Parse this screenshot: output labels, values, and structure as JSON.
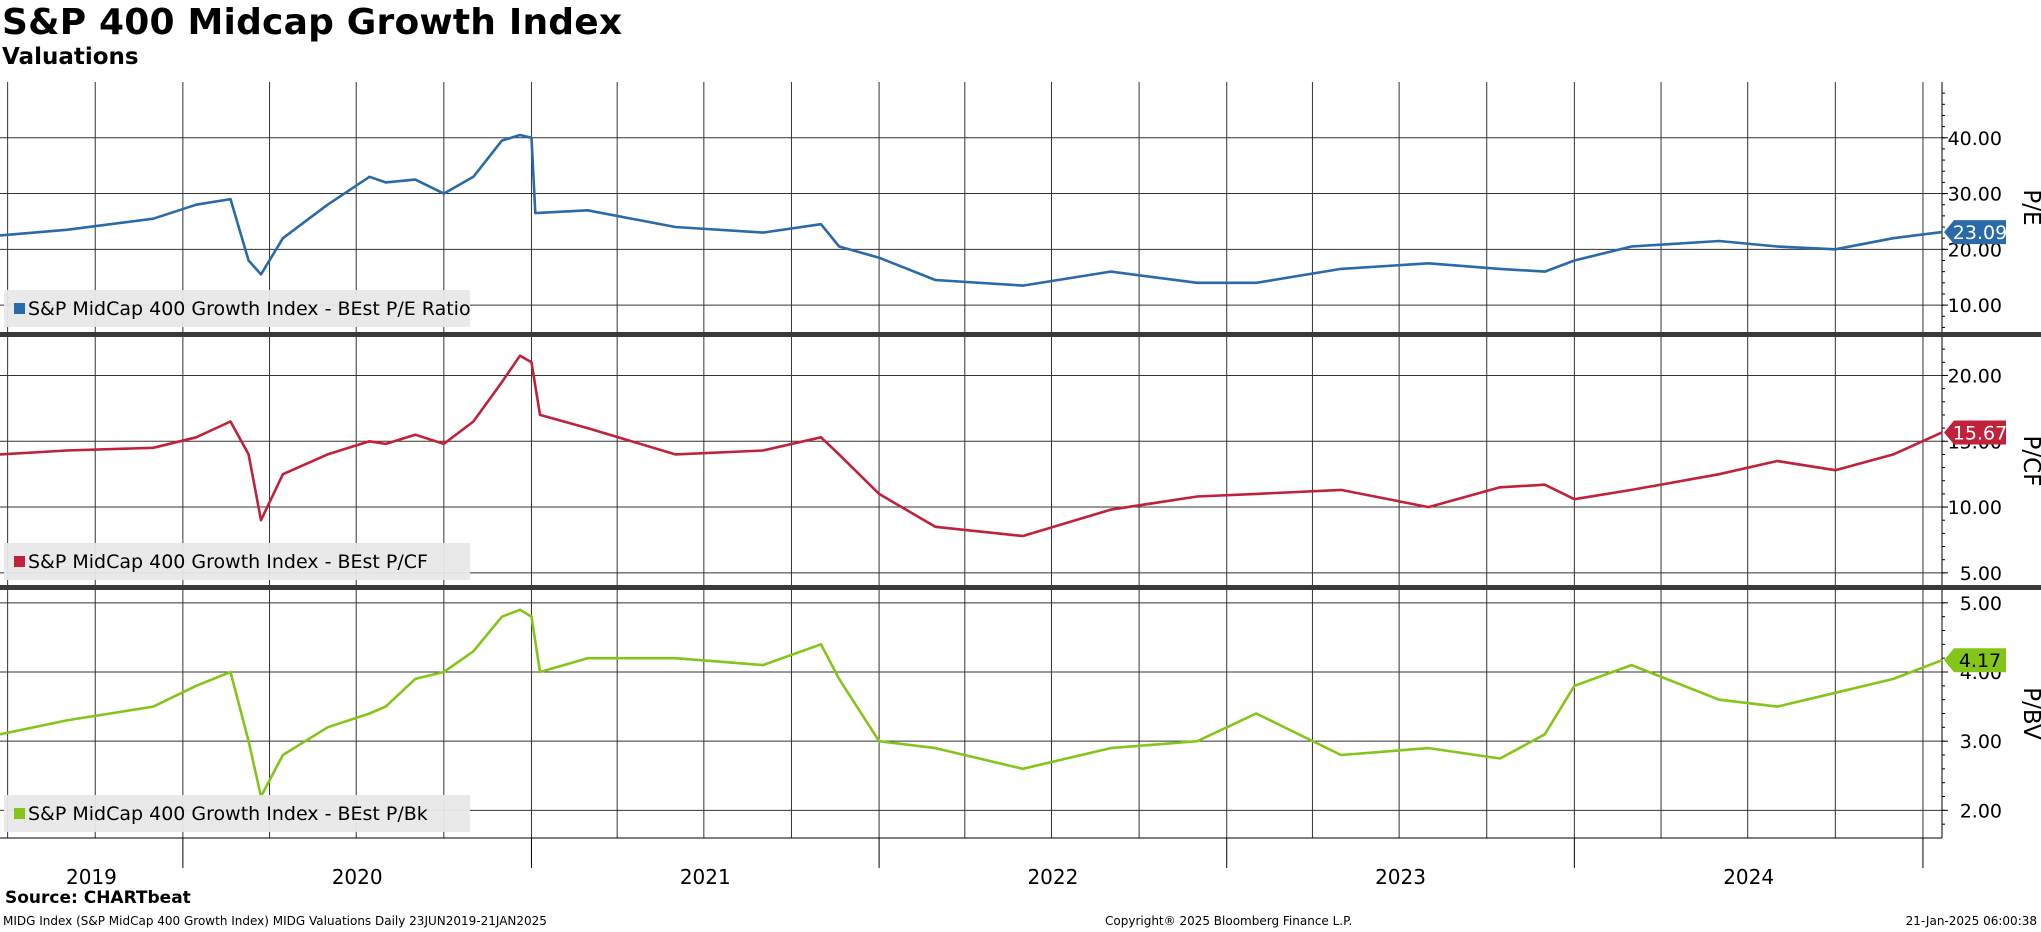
{
  "header": {
    "title": "S&P 400 Midcap Growth Index",
    "subtitle": "Valuations"
  },
  "footer": {
    "source": "Source: CHARTbeat",
    "left": "MIDG Index (S&P MidCap 400 Growth Index) MIDG Valuations  Daily 23JUN2019-21JAN2025",
    "center": "Copyright® 2025 Bloomberg Finance L.P.",
    "right": "21-Jan-2025 06:00:38"
  },
  "chart_data": [
    {
      "type": "line",
      "ylabel": "P/E",
      "ylim": [
        5,
        50
      ],
      "yticks": [
        10,
        20,
        30,
        40
      ],
      "ytick_labels": [
        "10.00",
        "20.00",
        "30.00",
        "40.00"
      ],
      "grid": true,
      "legend": "bottom-left",
      "last_value_label": "23.09",
      "series": [
        {
          "name": "S&P MidCap 400 Growth Index - BEst P/E Ratio",
          "color": "#2a6aa8",
          "x": [
            "2019-06-23",
            "2019-09-01",
            "2019-12-01",
            "2020-01-15",
            "2020-02-20",
            "2020-03-10",
            "2020-03-23",
            "2020-04-15",
            "2020-06-01",
            "2020-07-15",
            "2020-08-01",
            "2020-09-01",
            "2020-10-01",
            "2020-11-01",
            "2020-12-01",
            "2020-12-20",
            "2021-01-01",
            "2021-01-05",
            "2021-03-01",
            "2021-06-01",
            "2021-09-01",
            "2021-11-01",
            "2021-11-20",
            "2022-01-01",
            "2022-03-01",
            "2022-06-01",
            "2022-09-01",
            "2022-12-01",
            "2023-02-01",
            "2023-05-01",
            "2023-08-01",
            "2023-10-15",
            "2023-12-01",
            "2024-01-01",
            "2024-03-01",
            "2024-06-01",
            "2024-08-01",
            "2024-10-01",
            "2024-12-01",
            "2025-01-21"
          ],
          "values": [
            22.5,
            23.5,
            25.5,
            28,
            29,
            18,
            15.5,
            22,
            28,
            33,
            32,
            32.5,
            30,
            33,
            39.5,
            40.5,
            40,
            26.5,
            27,
            24,
            23,
            24.5,
            20.5,
            18.5,
            14.5,
            13.5,
            16,
            14,
            14,
            16.5,
            17.5,
            16.5,
            16,
            18,
            20.5,
            21.5,
            20.5,
            20,
            22,
            23.09
          ]
        }
      ]
    },
    {
      "type": "line",
      "ylabel": "P/CF",
      "ylim": [
        4,
        23
      ],
      "yticks": [
        5,
        10,
        15,
        20
      ],
      "ytick_labels": [
        "5.00",
        "10.00",
        "15.00",
        "20.00"
      ],
      "grid": true,
      "legend": "bottom-left",
      "last_value_label": "15.67",
      "series": [
        {
          "name": "S&P MidCap 400 Growth Index - BEst P/CF",
          "color": "#c0213b",
          "x": [
            "2019-06-23",
            "2019-09-01",
            "2019-12-01",
            "2020-01-15",
            "2020-02-20",
            "2020-03-10",
            "2020-03-23",
            "2020-04-15",
            "2020-06-01",
            "2020-07-15",
            "2020-08-01",
            "2020-09-01",
            "2020-10-01",
            "2020-11-01",
            "2020-12-01",
            "2020-12-20",
            "2021-01-01",
            "2021-01-10",
            "2021-03-01",
            "2021-06-01",
            "2021-09-01",
            "2021-11-01",
            "2021-11-20",
            "2022-01-01",
            "2022-03-01",
            "2022-06-01",
            "2022-09-01",
            "2022-12-01",
            "2023-02-01",
            "2023-05-01",
            "2023-08-01",
            "2023-10-15",
            "2023-12-01",
            "2024-01-01",
            "2024-03-01",
            "2024-06-01",
            "2024-08-01",
            "2024-10-01",
            "2024-12-01",
            "2025-01-21"
          ],
          "values": [
            14,
            14.3,
            14.5,
            15.3,
            16.5,
            14,
            9,
            12.5,
            14,
            15,
            14.8,
            15.5,
            14.8,
            16.5,
            19.5,
            21.5,
            21,
            17,
            16,
            14,
            14.3,
            15.3,
            14,
            11,
            8.5,
            7.8,
            9.8,
            10.8,
            11,
            11.3,
            10,
            11.5,
            11.7,
            10.6,
            11.3,
            12.5,
            13.5,
            12.8,
            14,
            15.67
          ]
        }
      ]
    },
    {
      "type": "line",
      "ylabel": "P/BV",
      "ylim": [
        1.6,
        5.2
      ],
      "yticks": [
        2,
        3,
        4,
        5
      ],
      "ytick_labels": [
        "2.00",
        "3.00",
        "4.00",
        "5.00"
      ],
      "grid": true,
      "legend": "bottom-left",
      "last_value_label": "4.17",
      "series": [
        {
          "name": "S&P MidCap 400 Growth Index - BEst P/Bk",
          "color": "#84c519",
          "x": [
            "2019-06-23",
            "2019-09-01",
            "2019-12-01",
            "2020-01-15",
            "2020-02-20",
            "2020-03-10",
            "2020-03-23",
            "2020-04-15",
            "2020-06-01",
            "2020-07-15",
            "2020-08-01",
            "2020-09-01",
            "2020-10-01",
            "2020-11-01",
            "2020-12-01",
            "2020-12-20",
            "2021-01-01",
            "2021-01-10",
            "2021-03-01",
            "2021-06-01",
            "2021-09-01",
            "2021-11-01",
            "2021-11-20",
            "2022-01-01",
            "2022-03-01",
            "2022-06-01",
            "2022-09-01",
            "2022-12-01",
            "2023-02-01",
            "2023-05-01",
            "2023-08-01",
            "2023-10-15",
            "2023-12-01",
            "2024-01-01",
            "2024-03-01",
            "2024-06-01",
            "2024-08-01",
            "2024-10-01",
            "2024-12-01",
            "2025-01-21"
          ],
          "values": [
            3.1,
            3.3,
            3.5,
            3.8,
            4.0,
            3.0,
            2.2,
            2.8,
            3.2,
            3.4,
            3.5,
            3.9,
            4.0,
            4.3,
            4.8,
            4.9,
            4.8,
            4.0,
            4.2,
            4.2,
            4.1,
            4.4,
            3.9,
            3.0,
            2.9,
            2.6,
            2.9,
            3.0,
            3.4,
            2.8,
            2.9,
            2.75,
            3.1,
            3.8,
            4.1,
            3.6,
            3.5,
            3.7,
            3.9,
            4.17
          ]
        }
      ]
    }
  ],
  "x_axis": {
    "year_labels": [
      "2019",
      "2020",
      "2021",
      "2022",
      "2023",
      "2024"
    ],
    "start": "2019-06-23",
    "end": "2025-01-21"
  }
}
